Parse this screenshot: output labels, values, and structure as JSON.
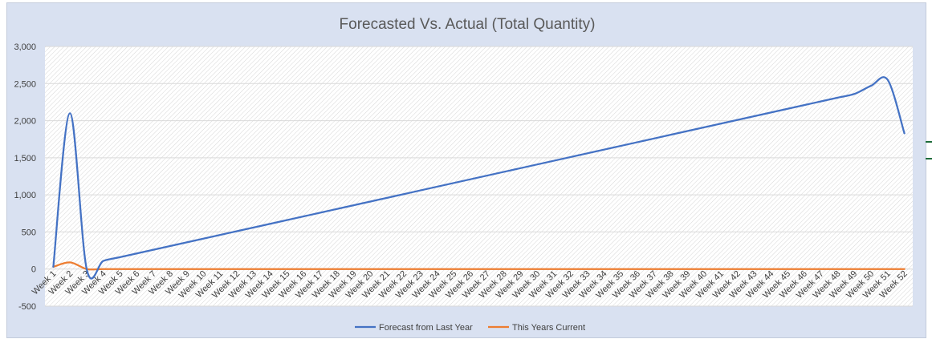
{
  "chart_data": {
    "type": "line",
    "title": "Forecasted Vs. Actual (Total Quantity)",
    "xlabel": "",
    "ylabel": "",
    "ylim": [
      -500,
      3000
    ],
    "y_ticks": [
      -500,
      0,
      500,
      1000,
      1500,
      2000,
      2500,
      3000
    ],
    "y_tick_labels": [
      "-500",
      "0",
      "500",
      "1,000",
      "1,500",
      "2,000",
      "2,500",
      "3,000"
    ],
    "grid": true,
    "legend": "bottom",
    "smooth": true,
    "categories": [
      "Week 1",
      "Week 2",
      "Week 3",
      "Week 4",
      "Week 5",
      "Week 6",
      "Week 7",
      "Week 8",
      "Week 9",
      "Week 10",
      "Week 11",
      "Week 12",
      "Week 13",
      "Week 14",
      "Week 15",
      "Week 16",
      "Week 17",
      "Week 18",
      "Week 19",
      "Week 20",
      "Week 21",
      "Week 22",
      "Week 23",
      "Week 24",
      "Week 25",
      "Week 26",
      "Week 27",
      "Week 28",
      "Week 29",
      "Week 30",
      "Week 31",
      "Week 32",
      "Week 33",
      "Week 34",
      "Week 35",
      "Week 36",
      "Week 37",
      "Week 38",
      "Week 39",
      "Week 40",
      "Week 41",
      "Week 42",
      "Week 43",
      "Week 44",
      "Week 45",
      "Week 46",
      "Week 47",
      "Week 48",
      "Week 49",
      "Week 50",
      "Week 51",
      "Week 52"
    ],
    "series": [
      {
        "name": "Forecast from Last Year",
        "color": "#4472c4",
        "values": [
          30,
          2100,
          0,
          110,
          160,
          210,
          260,
          310,
          360,
          410,
          460,
          510,
          560,
          610,
          660,
          710,
          760,
          810,
          860,
          910,
          960,
          1010,
          1060,
          1110,
          1160,
          1210,
          1260,
          1310,
          1360,
          1410,
          1460,
          1510,
          1560,
          1610,
          1660,
          1710,
          1760,
          1810,
          1860,
          1910,
          1960,
          2010,
          2060,
          2110,
          2160,
          2210,
          2260,
          2310,
          2360,
          2470,
          2550,
          1830
        ]
      },
      {
        "name": "This Years Current",
        "color": "#ed7d31",
        "values": [
          30,
          90,
          0,
          0,
          0,
          0,
          0,
          0,
          0,
          0,
          0,
          0,
          0,
          0,
          0,
          0,
          0,
          0,
          0,
          0,
          0,
          0,
          0,
          0,
          0,
          0,
          0,
          0,
          0,
          0,
          0,
          0,
          0,
          0,
          0,
          0,
          0,
          0,
          0,
          0,
          0,
          0,
          0,
          0,
          0,
          0,
          0,
          0,
          0,
          0,
          0,
          0
        ]
      }
    ]
  }
}
